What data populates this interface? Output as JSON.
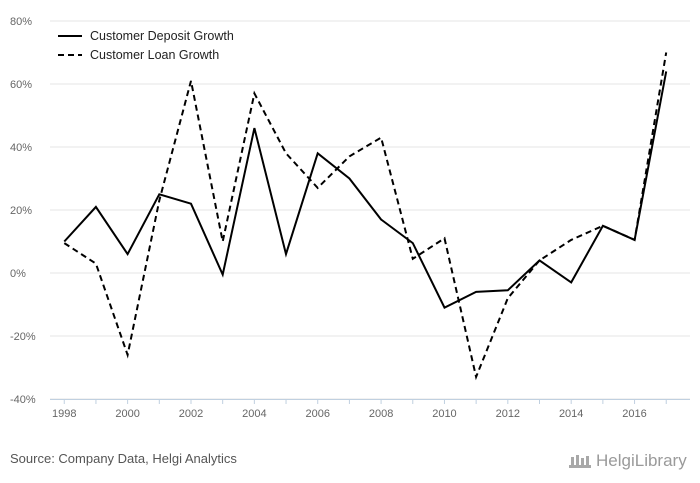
{
  "chart_data": {
    "type": "line",
    "title": "",
    "xlabel": "",
    "ylabel": "",
    "x": [
      1998,
      1999,
      2000,
      2001,
      2002,
      2003,
      2004,
      2005,
      2006,
      2007,
      2008,
      2009,
      2010,
      2011,
      2012,
      2013,
      2014,
      2015,
      2016,
      2017
    ],
    "xticks": [
      "1998",
      "2000",
      "2002",
      "2004",
      "2006",
      "2008",
      "2010",
      "2012",
      "2014",
      "2016"
    ],
    "ylim": [
      -40,
      80
    ],
    "yticks": [
      "80%",
      "60%",
      "40%",
      "20%",
      "0%",
      "-20%",
      "-40%"
    ],
    "grid": true,
    "legend_position": "top-left",
    "series": [
      {
        "name": "Customer Deposit Growth",
        "style": "solid",
        "values": [
          10,
          21,
          6,
          25,
          22,
          -0.5,
          46,
          6,
          38,
          30,
          17,
          9.5,
          -11,
          -6,
          -5.5,
          4,
          -3,
          15,
          10.5,
          64
        ]
      },
      {
        "name": "Customer Loan Growth",
        "style": "dashed",
        "values": [
          9.5,
          3,
          -26,
          23,
          61,
          10,
          57,
          38,
          27,
          37,
          43,
          4.5,
          11,
          -33,
          -8,
          4,
          10.5,
          15,
          10.5,
          70
        ]
      }
    ]
  },
  "footer": {
    "source": "Source: Company Data, Helgi Analytics",
    "brand": "HelgiLibrary"
  },
  "colors": {
    "line": "#000000",
    "grid": "#e6e6e6",
    "axis": "#c0d0e0",
    "text": "#666666"
  }
}
